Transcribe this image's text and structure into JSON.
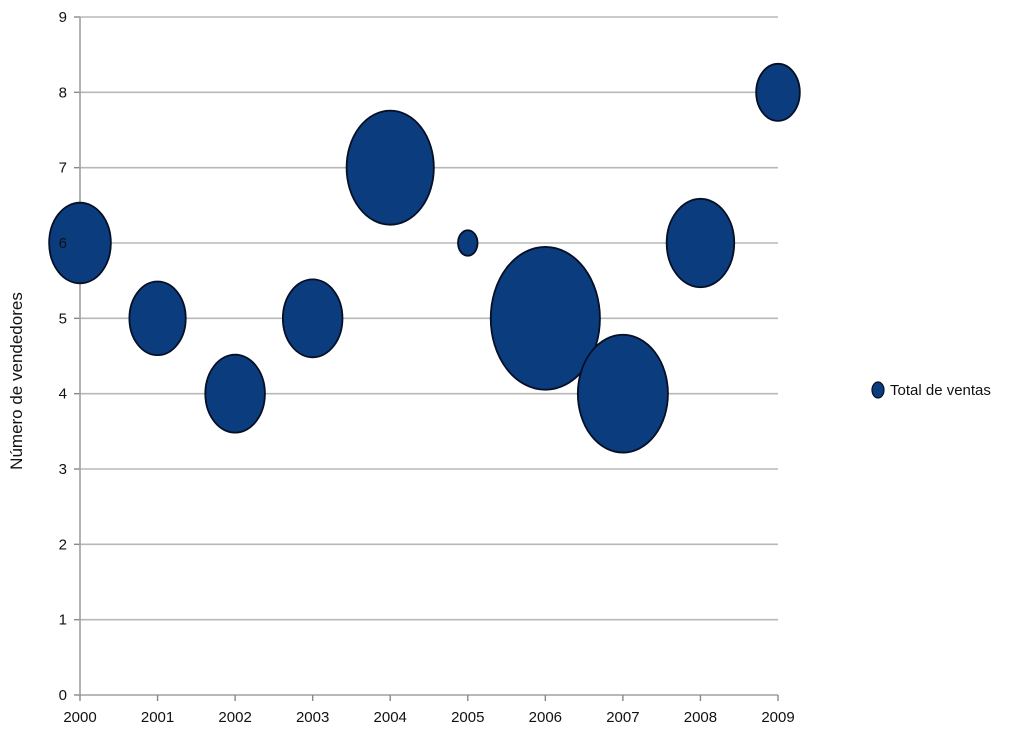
{
  "chart_data": {
    "type": "bubble",
    "title": "",
    "xlabel": "",
    "ylabel": "Número de vendedores",
    "x_categories": [
      "2000",
      "2001",
      "2002",
      "2003",
      "2004",
      "2005",
      "2006",
      "2007",
      "2008",
      "2009"
    ],
    "ylim": [
      0,
      9
    ],
    "yticks": [
      "0",
      "1",
      "2",
      "3",
      "4",
      "5",
      "6",
      "7",
      "8",
      "9"
    ],
    "grid": "horizontal",
    "legend_position": "right",
    "series": [
      {
        "name": "Total de ventas",
        "color": "#0b3c7d",
        "points": [
          {
            "x": "2000",
            "y": 6,
            "size": 0.3
          },
          {
            "x": "2001",
            "y": 5,
            "size": 0.25
          },
          {
            "x": "2002",
            "y": 4,
            "size": 0.28
          },
          {
            "x": "2003",
            "y": 5,
            "size": 0.28
          },
          {
            "x": "2004",
            "y": 7,
            "size": 0.6
          },
          {
            "x": "2005",
            "y": 6,
            "size": 0.03
          },
          {
            "x": "2006",
            "y": 5,
            "size": 0.94
          },
          {
            "x": "2007",
            "y": 4,
            "size": 0.64
          },
          {
            "x": "2008",
            "y": 6,
            "size": 0.36
          },
          {
            "x": "2009",
            "y": 8,
            "size": 0.15
          }
        ]
      }
    ]
  }
}
